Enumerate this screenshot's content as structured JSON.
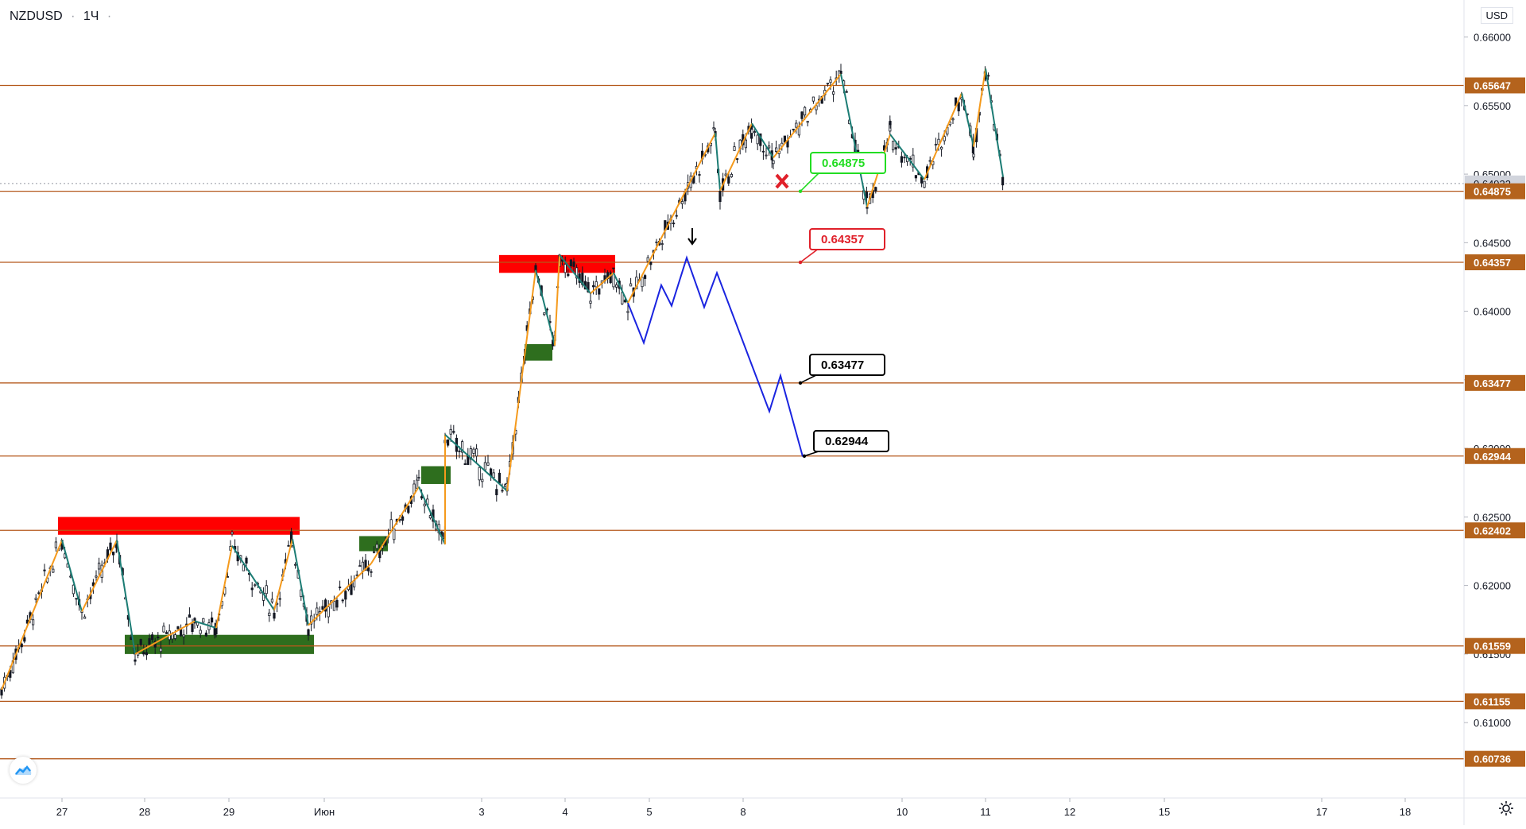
{
  "header": {
    "symbol": "NZDUSD",
    "interval": "1Ч",
    "separator": "·"
  },
  "currency": "USD",
  "colors": {
    "level_line": "#b4581b",
    "level_label_bg": "#b4631d",
    "bull_candle": "#131722",
    "zigzag_up": "#f59a1c",
    "zigzag_down": "#1b7c74",
    "projection": "#1a24e0",
    "supply_zone": "#ff0000",
    "demand_zone": "#2e6e1e",
    "target_green": "#22dd22",
    "target_red": "#e0202a",
    "target_black": "#000000"
  },
  "chart_data": {
    "type": "line",
    "title": "",
    "xlabel": "",
    "ylabel": "",
    "ylim": [
      0.6045,
      0.6627
    ],
    "price_ticks": [
      "0.66000",
      "0.65500",
      "0.65000",
      "0.64500",
      "0.64000",
      "0.63500",
      "0.63000",
      "0.62500",
      "0.62000",
      "0.61500",
      "0.61000"
    ],
    "date_ticks": [
      "27",
      "28",
      "29",
      "Июн",
      "3",
      "4",
      "5",
      "8",
      "10",
      "11",
      "12",
      "15",
      "17",
      "18"
    ],
    "current_price": "0.64932",
    "levels": [
      {
        "price": 0.65647,
        "label": "0.65647"
      },
      {
        "price": 0.64875,
        "label": "0.64875"
      },
      {
        "price": 0.64357,
        "label": "0.64357"
      },
      {
        "price": 0.63477,
        "label": "0.63477"
      },
      {
        "price": 0.62944,
        "label": "0.62944"
      },
      {
        "price": 0.62402,
        "label": "0.62402"
      },
      {
        "price": 0.61559,
        "label": "0.61559"
      },
      {
        "price": 0.61155,
        "label": "0.61155"
      },
      {
        "price": 0.60736,
        "label": "0.60736"
      }
    ],
    "targets": [
      {
        "label": "0.64875",
        "price": 0.64875,
        "style": "green",
        "status": "cancelled"
      },
      {
        "label": "0.64357",
        "price": 0.64357,
        "style": "red"
      },
      {
        "label": "0.63477",
        "price": 0.63477,
        "style": "black"
      },
      {
        "label": "0.62944",
        "price": 0.62944,
        "style": "black"
      }
    ],
    "zones": [
      {
        "kind": "supply",
        "from": "27",
        "to": "Июн",
        "low": 0.6237,
        "high": 0.625
      },
      {
        "kind": "demand",
        "from": "28",
        "to": "Июн",
        "low": 0.615,
        "high": 0.6164
      },
      {
        "kind": "supply",
        "from": "3",
        "to": "4",
        "low": 0.6428,
        "high": 0.6441
      },
      {
        "kind": "demand",
        "from": "3",
        "to": "4",
        "low": 0.6364,
        "high": 0.6376
      },
      {
        "kind": "demand",
        "from": "Июн",
        "to": "3",
        "low": 0.6274,
        "high": 0.6287
      },
      {
        "kind": "demand",
        "from": "Июн",
        "to": "3",
        "low": 0.6225,
        "high": 0.6236
      }
    ],
    "projection_path": [
      0.6406,
      0.6377,
      0.6419,
      0.6404,
      0.6439,
      0.6403,
      0.6428,
      0.6327,
      0.6353,
      0.6294
    ],
    "zigzag_points": [
      0.6124,
      0.6233,
      0.6181,
      0.6233,
      0.615,
      0.6174,
      0.6169,
      0.6229,
      0.6182,
      0.6234,
      0.6171,
      0.6216,
      0.6272,
      0.623,
      0.631,
      0.6269,
      0.643,
      0.6375,
      0.6441,
      0.6413,
      0.6428,
      0.6406,
      0.653,
      0.6488,
      0.6537,
      0.6512,
      0.6573,
      0.6476,
      0.6529,
      0.6496,
      0.6559,
      0.652,
      0.6577,
      0.6498
    ]
  }
}
